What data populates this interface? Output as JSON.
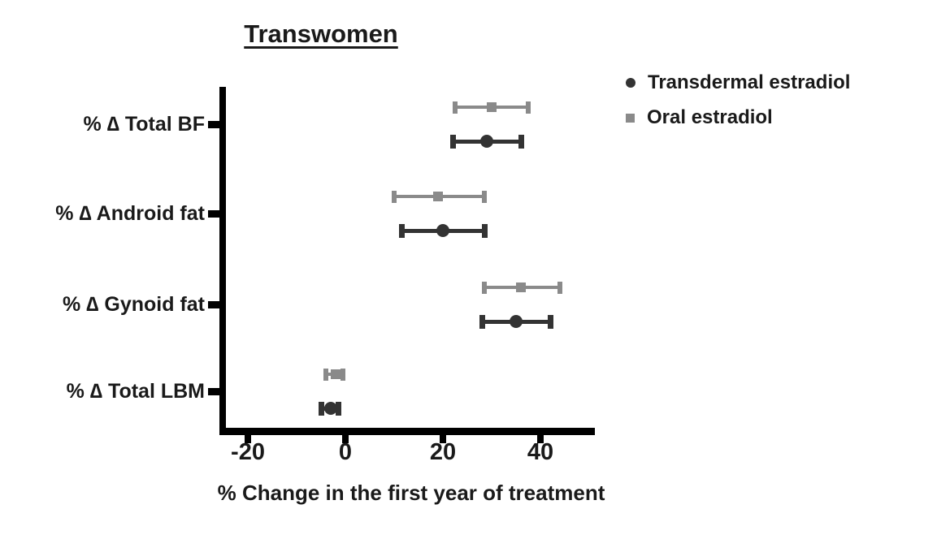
{
  "title": {
    "text": "Transwomen"
  },
  "legend": {
    "items": [
      {
        "label": "Transdermal estradiol",
        "marker": "circle",
        "color": "#333333"
      },
      {
        "label": "Oral estradiol",
        "marker": "square",
        "color": "#8a8a8a"
      }
    ]
  },
  "chart_data": {
    "type": "scatter",
    "subtype": "horizontal-forest-plot-with-error-bars",
    "title": "Transwomen",
    "xlabel": "% Change in the first year of treatment",
    "ylabel": "",
    "categories": [
      "% ∆ Total BF",
      "% ∆ Android fat",
      "% ∆ Gynoid fat",
      "% ∆ Total LBM"
    ],
    "x_ticks": [
      -20,
      0,
      20,
      40
    ],
    "x_tick_labels": [
      "-20",
      "0",
      "20",
      "40"
    ],
    "xlim": [
      -26,
      51
    ],
    "grid": false,
    "legend_position": "top-right",
    "series": [
      {
        "name": "Transdermal estradiol",
        "marker": "circle",
        "color": "#333333",
        "values": [
          29,
          20,
          35,
          -3
        ],
        "ci_low": [
          22,
          11.5,
          28,
          -5
        ],
        "ci_high": [
          36,
          28.5,
          42,
          -1.5
        ]
      },
      {
        "name": "Oral estradiol",
        "marker": "square",
        "color": "#8a8a8a",
        "values": [
          30,
          19,
          36,
          -2
        ],
        "ci_low": [
          22.5,
          10,
          28.5,
          -4
        ],
        "ci_high": [
          37.5,
          28.5,
          44,
          -0.5
        ]
      }
    ]
  }
}
